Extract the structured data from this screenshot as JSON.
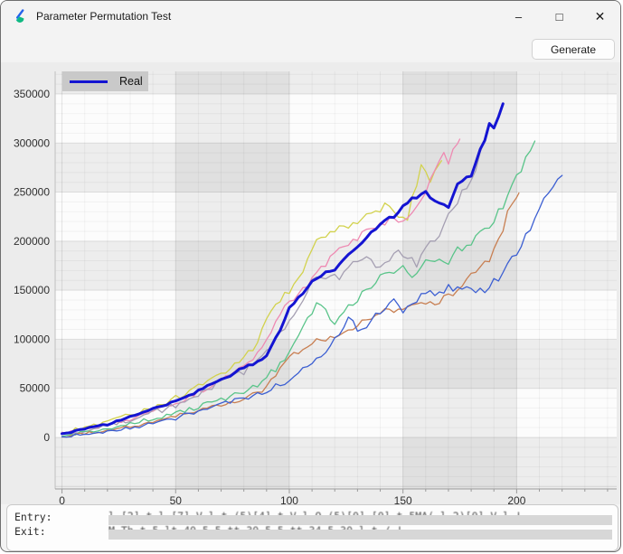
{
  "window": {
    "title": "Parameter Permutation Test",
    "controls": {
      "minimize": "–",
      "maximize": "□",
      "close": "✕"
    }
  },
  "toolbar": {
    "generate_label": "Generate"
  },
  "info_panel": {
    "entry_label": "Entry:",
    "exit_label": "Exit:",
    "entry_redacted_fragment": "l  [2] t  l  [7]  V l  t  (5)[4] t  V l  O    (5)[0]       [0] t 5MA( l     2)[0]  V l   !",
    "exit_redacted_fragment": "M  Th   t  5 lt   40  5     5  tt  30      5    5   tt  34   5   30      l     t / !"
  },
  "colors": {
    "window_bg": "#f3f3f3",
    "chart_margin_bg": "#ececec",
    "plot_bg": "#fcfcfc",
    "band": "rgba(120,120,120,0.115)",
    "grid_minor": "rgba(0,0,0,0.045)",
    "grid_major": "rgba(0,0,0,0.10)",
    "axis_line": "#9a9a9a",
    "axis_text": "#2f2f2f",
    "legend_bg": "#c9c9c9",
    "redaction": "#d7d7d7"
  },
  "chart_data": {
    "type": "line",
    "title": "",
    "xlabel": "",
    "ylabel": "",
    "x_range": [
      -3,
      244
    ],
    "y_range": [
      -52500,
      373000
    ],
    "x_ticks": [
      0,
      50,
      100,
      150,
      200
    ],
    "y_ticks": [
      0,
      50000,
      100000,
      150000,
      200000,
      250000,
      300000,
      350000
    ],
    "minor_x_step": 10,
    "minor_y_step": 10000,
    "dark_column_bands": [
      [
        50,
        100
      ],
      [
        150,
        200
      ]
    ],
    "dark_row_bands": [
      [
        -52500,
        0
      ],
      [
        50000,
        100000
      ],
      [
        150000,
        200000
      ],
      [
        250000,
        300000
      ],
      [
        350000,
        373000
      ]
    ],
    "grid": true,
    "legend": {
      "label": "Real",
      "position": "top-left"
    },
    "series": [
      {
        "name": "permutation-yellow",
        "color": "#d2d24e",
        "width": 1.3,
        "noise": 6000,
        "points": [
          [
            0,
            5000
          ],
          [
            10,
            10000
          ],
          [
            20,
            16000
          ],
          [
            30,
            23000
          ],
          [
            40,
            30000
          ],
          [
            50,
            40000
          ],
          [
            60,
            52000
          ],
          [
            70,
            64000
          ],
          [
            80,
            80000
          ],
          [
            85,
            92000
          ],
          [
            90,
            118000
          ],
          [
            95,
            135000
          ],
          [
            100,
            150000
          ],
          [
            105,
            168000
          ],
          [
            110,
            190000
          ],
          [
            115,
            208000
          ],
          [
            120,
            212000
          ],
          [
            125,
            216000
          ],
          [
            130,
            222000
          ],
          [
            135,
            226000
          ],
          [
            140,
            232000
          ],
          [
            145,
            236000
          ],
          [
            148,
            228000
          ],
          [
            152,
            226000
          ],
          [
            155,
            252000
          ],
          [
            158,
            280000
          ],
          [
            161,
            262000
          ],
          [
            164,
            272000
          ],
          [
            167,
            282000
          ]
        ]
      },
      {
        "name": "permutation-pink",
        "color": "#ee8ab2",
        "width": 1.3,
        "noise": 4500,
        "points": [
          [
            0,
            4000
          ],
          [
            10,
            8000
          ],
          [
            20,
            13000
          ],
          [
            30,
            19000
          ],
          [
            40,
            26000
          ],
          [
            50,
            35000
          ],
          [
            60,
            46000
          ],
          [
            70,
            58000
          ],
          [
            80,
            72000
          ],
          [
            85,
            82000
          ],
          [
            90,
            100000
          ],
          [
            95,
            122000
          ],
          [
            100,
            138000
          ],
          [
            105,
            148000
          ],
          [
            110,
            162000
          ],
          [
            115,
            175000
          ],
          [
            120,
            188000
          ],
          [
            125,
            197000
          ],
          [
            130,
            204000
          ],
          [
            135,
            210000
          ],
          [
            140,
            216000
          ],
          [
            145,
            224000
          ],
          [
            150,
            222000
          ],
          [
            154,
            226000
          ],
          [
            158,
            244000
          ],
          [
            162,
            262000
          ],
          [
            165,
            276000
          ],
          [
            168,
            288000
          ],
          [
            170,
            278000
          ],
          [
            172,
            290000
          ],
          [
            175,
            304000
          ]
        ]
      },
      {
        "name": "permutation-gray",
        "color": "#a59fb2",
        "width": 1.3,
        "noise": 7000,
        "points": [
          [
            0,
            3000
          ],
          [
            10,
            7000
          ],
          [
            20,
            12000
          ],
          [
            30,
            18000
          ],
          [
            40,
            25000
          ],
          [
            50,
            33000
          ],
          [
            60,
            43000
          ],
          [
            70,
            55000
          ],
          [
            80,
            68000
          ],
          [
            85,
            76000
          ],
          [
            90,
            88000
          ],
          [
            95,
            100000
          ],
          [
            100,
            118000
          ],
          [
            105,
            140000
          ],
          [
            110,
            158000
          ],
          [
            113,
            167000
          ],
          [
            118,
            162000
          ],
          [
            124,
            168000
          ],
          [
            128,
            180000
          ],
          [
            133,
            187000
          ],
          [
            137,
            172000
          ],
          [
            140,
            168000
          ],
          [
            145,
            182000
          ],
          [
            149,
            190000
          ],
          [
            153,
            180000
          ],
          [
            156,
            176000
          ],
          [
            160,
            190000
          ],
          [
            165,
            200000
          ],
          [
            169,
            218000
          ],
          [
            173,
            238000
          ],
          [
            177,
            254000
          ],
          [
            181,
            272000
          ],
          [
            184,
            285000
          ],
          [
            187,
            314000
          ]
        ]
      },
      {
        "name": "permutation-green",
        "color": "#59c489",
        "width": 1.3,
        "noise": 5200,
        "points": [
          [
            0,
            2000
          ],
          [
            10,
            5000
          ],
          [
            20,
            9000
          ],
          [
            30,
            14000
          ],
          [
            40,
            19000
          ],
          [
            50,
            25000
          ],
          [
            60,
            31000
          ],
          [
            70,
            38000
          ],
          [
            80,
            46000
          ],
          [
            85,
            52000
          ],
          [
            90,
            62000
          ],
          [
            95,
            72000
          ],
          [
            100,
            86000
          ],
          [
            105,
            105000
          ],
          [
            110,
            128000
          ],
          [
            113,
            138000
          ],
          [
            117,
            125000
          ],
          [
            120,
            116000
          ],
          [
            125,
            130000
          ],
          [
            130,
            141000
          ],
          [
            135,
            152000
          ],
          [
            140,
            162000
          ],
          [
            145,
            168000
          ],
          [
            150,
            172000
          ],
          [
            155,
            166000
          ],
          [
            160,
            178000
          ],
          [
            165,
            183000
          ],
          [
            170,
            180000
          ],
          [
            175,
            192000
          ],
          [
            180,
            200000
          ],
          [
            185,
            208000
          ],
          [
            188,
            212000
          ],
          [
            192,
            228000
          ],
          [
            196,
            248000
          ],
          [
            200,
            270000
          ],
          [
            203,
            278000
          ],
          [
            206,
            292000
          ],
          [
            208,
            302000
          ]
        ]
      },
      {
        "name": "permutation-orange",
        "color": "#c87f52",
        "width": 1.3,
        "noise": 4200,
        "points": [
          [
            0,
            1000
          ],
          [
            10,
            4000
          ],
          [
            20,
            7000
          ],
          [
            30,
            11000
          ],
          [
            40,
            16000
          ],
          [
            50,
            22000
          ],
          [
            60,
            28000
          ],
          [
            70,
            34000
          ],
          [
            80,
            40000
          ],
          [
            85,
            45000
          ],
          [
            90,
            50000
          ],
          [
            95,
            68000
          ],
          [
            100,
            80000
          ],
          [
            105,
            90000
          ],
          [
            110,
            98000
          ],
          [
            115,
            100000
          ],
          [
            120,
            104000
          ],
          [
            125,
            108000
          ],
          [
            130,
            114000
          ],
          [
            136,
            122000
          ],
          [
            142,
            128000
          ],
          [
            148,
            132000
          ],
          [
            155,
            138000
          ],
          [
            162,
            136000
          ],
          [
            168,
            141000
          ],
          [
            173,
            150000
          ],
          [
            178,
            162000
          ],
          [
            183,
            172000
          ],
          [
            188,
            180000
          ],
          [
            192,
            200000
          ],
          [
            196,
            227000
          ],
          [
            199,
            240000
          ],
          [
            201,
            249000
          ]
        ]
      },
      {
        "name": "permutation-blue",
        "color": "#3c5fd2",
        "width": 1.3,
        "noise": 5200,
        "points": [
          [
            0,
            1000
          ],
          [
            10,
            3000
          ],
          [
            20,
            6000
          ],
          [
            30,
            10000
          ],
          [
            40,
            14000
          ],
          [
            50,
            20000
          ],
          [
            60,
            26000
          ],
          [
            70,
            33000
          ],
          [
            80,
            40000
          ],
          [
            90,
            48000
          ],
          [
            100,
            58000
          ],
          [
            107,
            70000
          ],
          [
            112,
            78000
          ],
          [
            118,
            92000
          ],
          [
            124,
            115000
          ],
          [
            127,
            122000
          ],
          [
            131,
            104000
          ],
          [
            136,
            120000
          ],
          [
            141,
            130000
          ],
          [
            146,
            138000
          ],
          [
            151,
            128000
          ],
          [
            156,
            140000
          ],
          [
            161,
            150000
          ],
          [
            166,
            146000
          ],
          [
            171,
            153000
          ],
          [
            176,
            150000
          ],
          [
            181,
            148000
          ],
          [
            186,
            152000
          ],
          [
            190,
            158000
          ],
          [
            195,
            172000
          ],
          [
            200,
            188000
          ],
          [
            205,
            208000
          ],
          [
            209,
            230000
          ],
          [
            212,
            244000
          ],
          [
            215,
            252000
          ],
          [
            218,
            263000
          ],
          [
            220,
            267000
          ]
        ]
      },
      {
        "name": "real",
        "color": "#1414d2",
        "width": 3,
        "noise": 2600,
        "points": [
          [
            0,
            3000
          ],
          [
            5,
            6000
          ],
          [
            10,
            9000
          ],
          [
            15,
            11000
          ],
          [
            20,
            13000
          ],
          [
            25,
            17000
          ],
          [
            30,
            21000
          ],
          [
            35,
            26000
          ],
          [
            40,
            30000
          ],
          [
            45,
            33000
          ],
          [
            50,
            37000
          ],
          [
            55,
            42000
          ],
          [
            60,
            48000
          ],
          [
            65,
            54000
          ],
          [
            70,
            58000
          ],
          [
            75,
            65000
          ],
          [
            80,
            71000
          ],
          [
            85,
            76000
          ],
          [
            90,
            84000
          ],
          [
            95,
            105000
          ],
          [
            100,
            131000
          ],
          [
            105,
            145000
          ],
          [
            110,
            158000
          ],
          [
            115,
            167000
          ],
          [
            120,
            172000
          ],
          [
            125,
            182000
          ],
          [
            130,
            196000
          ],
          [
            135,
            205000
          ],
          [
            140,
            217000
          ],
          [
            145,
            224000
          ],
          [
            150,
            235000
          ],
          [
            155,
            245000
          ],
          [
            160,
            249000
          ],
          [
            165,
            240000
          ],
          [
            170,
            236000
          ],
          [
            175,
            262000
          ],
          [
            180,
            268000
          ],
          [
            183,
            288000
          ],
          [
            186,
            304000
          ],
          [
            188,
            320000
          ],
          [
            190,
            316000
          ],
          [
            193,
            332000
          ],
          [
            194,
            340000
          ]
        ]
      }
    ]
  }
}
